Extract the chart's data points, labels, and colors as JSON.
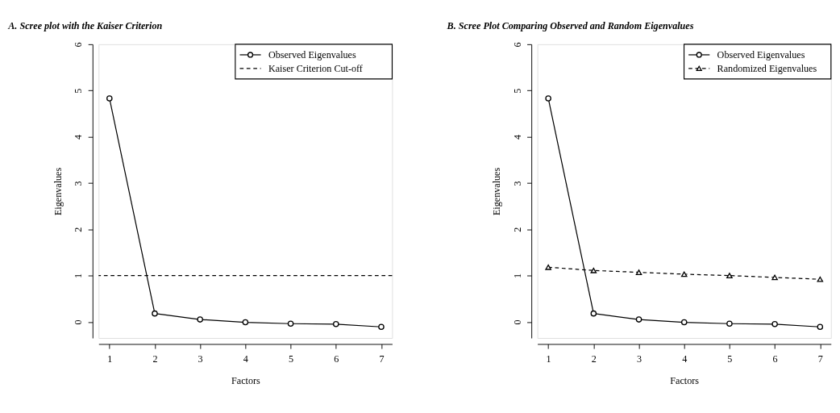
{
  "chart_data": [
    {
      "type": "line",
      "title": "A. Scree plot with the Kaiser Criterion",
      "xlabel": "Factors",
      "ylabel": "Eigenvalues",
      "x": [
        1,
        2,
        3,
        4,
        5,
        6,
        7
      ],
      "xlim": [
        0.76,
        7.24
      ],
      "xticks": [
        1,
        2,
        3,
        4,
        5,
        6,
        7
      ],
      "ylim": [
        -0.35,
        6
      ],
      "yticks": [
        0,
        1,
        2,
        3,
        4,
        5,
        6
      ],
      "legend": "top right",
      "grid": false,
      "marker": "circle",
      "series": [
        {
          "name": "Observed Eigenvalues",
          "color": "#000000",
          "values": [
            4.83,
            0.18,
            0.05,
            -0.01,
            -0.04,
            -0.05,
            -0.11
          ],
          "line_style": "solid"
        }
      ],
      "ref_lines": [
        {
          "axis": "y",
          "value": 1,
          "label": "Kaiser Criterion Cut-off",
          "color": "#000000",
          "line_style": "dashed"
        }
      ]
    },
    {
      "type": "line",
      "title": "B. Scree Plot Comparing Observed and Random Eigenvalues",
      "xlabel": "Factors",
      "ylabel": "Eigenvalues",
      "x": [
        1,
        2,
        3,
        4,
        5,
        6,
        7
      ],
      "xlim": [
        0.76,
        7.24
      ],
      "xticks": [
        1,
        2,
        3,
        4,
        5,
        6,
        7
      ],
      "ylim": [
        -0.35,
        6
      ],
      "yticks": [
        0,
        1,
        2,
        3,
        4,
        5,
        6
      ],
      "legend": "top right",
      "grid": false,
      "marker": "circle",
      "series": [
        {
          "name": "Observed Eigenvalues",
          "color": "#000000",
          "values": [
            4.83,
            0.18,
            0.05,
            -0.01,
            -0.04,
            -0.05,
            -0.11
          ],
          "line_style": "solid"
        },
        {
          "name": "Randomized Eigenvalues",
          "color": "#000000",
          "values": [
            1.18,
            1.11,
            1.07,
            1.03,
            1.0,
            0.96,
            0.92
          ],
          "marker": "triangle",
          "line_style": "dashed"
        }
      ]
    }
  ]
}
